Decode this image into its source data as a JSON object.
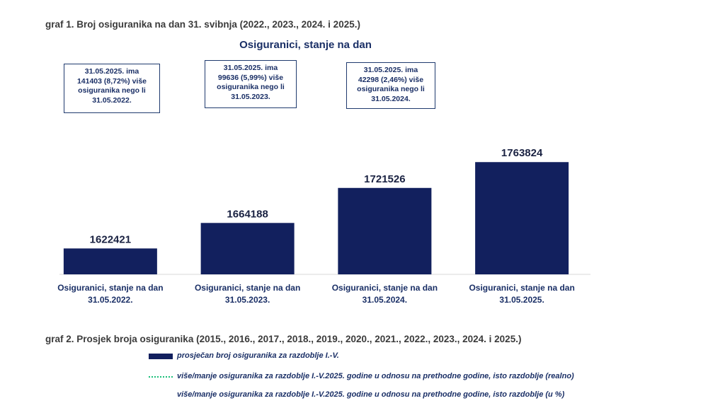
{
  "captions": {
    "graf1": "graf 1. Broj osiguranika na dan 31. svibnja (2022., 2023., 2024. i 2025.)",
    "graf2": "graf 2. Prosjek broja osiguranika (2015., 2016., 2017., 2018., 2019., 2020., 2021., 2022., 2023., 2024. i 2025.)"
  },
  "chart_data": {
    "type": "bar",
    "title": "Osiguranici, stanje na dan",
    "categories": [
      [
        "Osiguranici, stanje na dan",
        "31.05.2022."
      ],
      [
        "Osiguranici, stanje na dan",
        "31.05.2023."
      ],
      [
        "Osiguranici, stanje na dan",
        "31.05.2024."
      ],
      [
        "Osiguranici, stanje na dan",
        "31.05.2025."
      ]
    ],
    "values": [
      1622421,
      1664188,
      1721526,
      1763824
    ],
    "value_labels": [
      "1622421",
      "1664188",
      "1721526",
      "1763824"
    ],
    "ylim": [
      1580000,
      1800000
    ],
    "bar_color": "#12205e",
    "grid": false,
    "annotations": [
      [
        "31.05.2025. ima",
        "141403 (8,72%) više",
        "osiguranika nego li",
        "31.05.2022."
      ],
      [
        "31.05.2025. ima",
        "99636 (5,99%) više",
        "osiguranika nego li",
        "31.05.2023."
      ],
      [
        "31.05.2025. ima",
        "42298 (2,46%) više",
        "osiguranika nego li",
        "31.05.2024."
      ]
    ]
  },
  "legend2": [
    "prosječan broj osiguranika za razdoblje I.-V.",
    "više/manje osiguranika za razdoblje I.-V.2025. godine u odnosu na prethodne godine, isto razdoblje (realno)",
    "više/manje osiguranika za razdoblje I.-V.2025. godine u odnosu na prethodne godine, isto razdoblje (u %)"
  ]
}
